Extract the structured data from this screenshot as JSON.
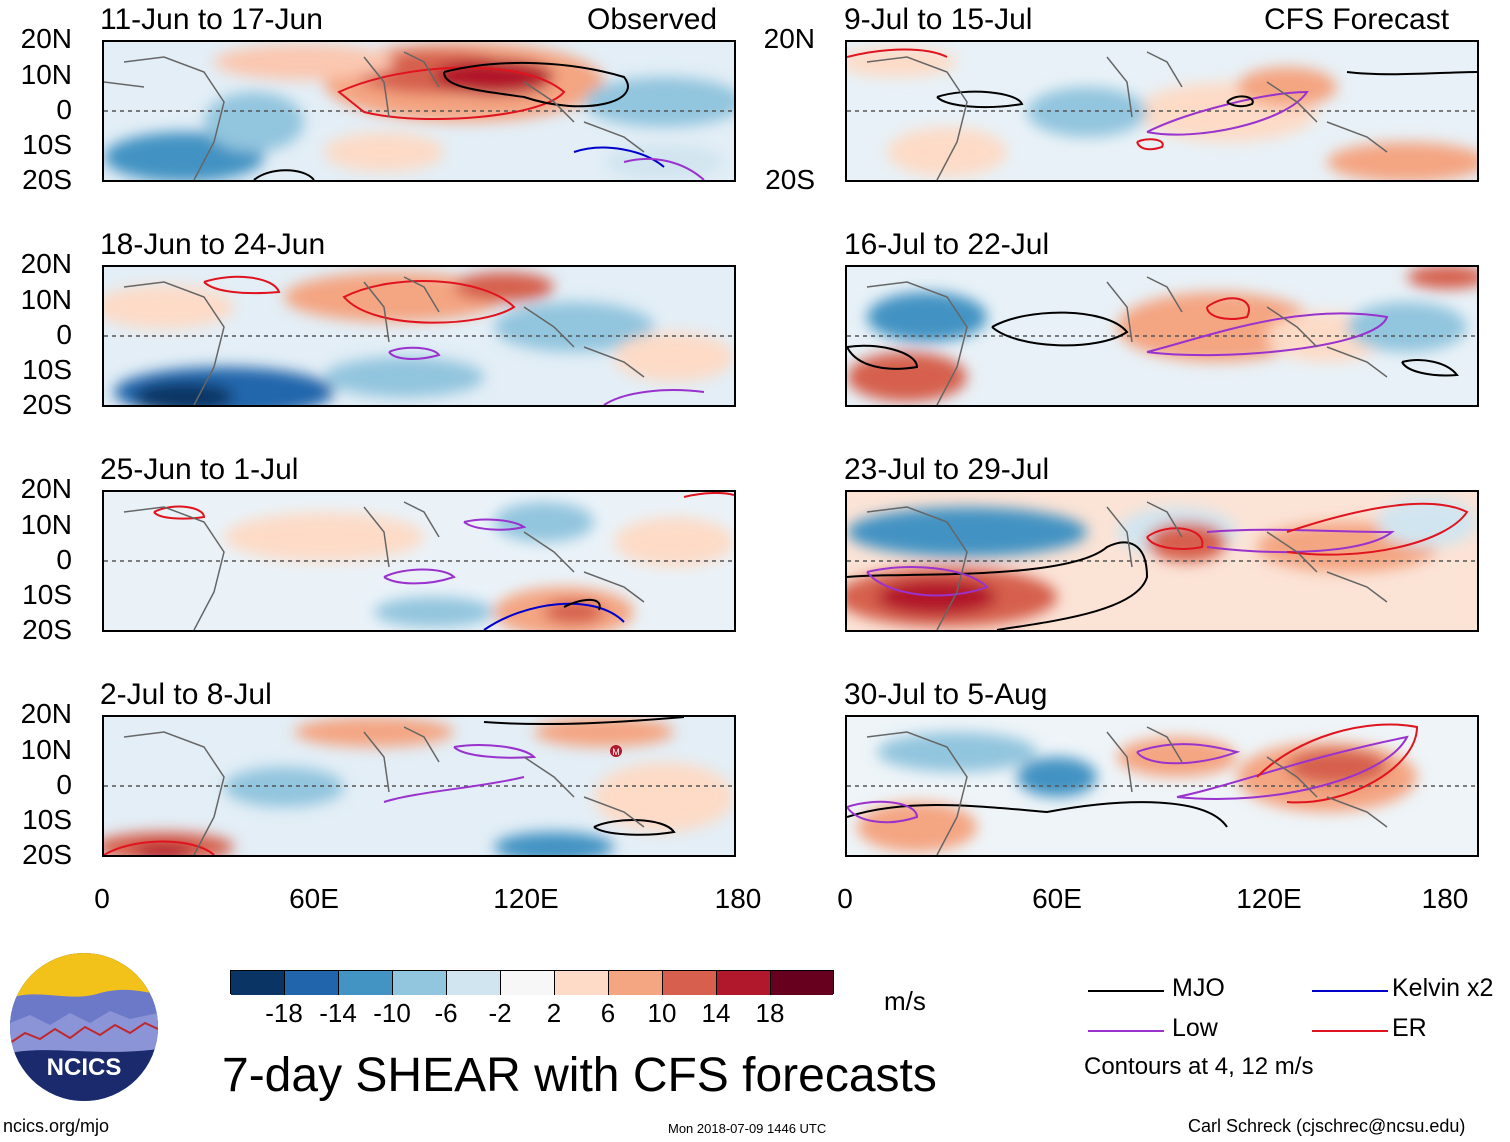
{
  "header": {
    "left_column_label": "Observed",
    "right_column_label": "CFS Forecast"
  },
  "panels_left": [
    {
      "title": "11-Jun to 17-Jun"
    },
    {
      "title": "18-Jun to 24-Jun"
    },
    {
      "title": "25-Jun to 1-Jul"
    },
    {
      "title": "2-Jul to 8-Jul"
    }
  ],
  "panels_right": [
    {
      "title": "9-Jul to 15-Jul"
    },
    {
      "title": "16-Jul to 22-Jul"
    },
    {
      "title": "23-Jul to 29-Jul"
    },
    {
      "title": "30-Jul to 5-Aug"
    }
  ],
  "axes": {
    "lat_labels": [
      "20N",
      "10N",
      "0",
      "10S",
      "20S"
    ],
    "lon_labels": [
      "0",
      "60E",
      "120E",
      "180"
    ]
  },
  "colorbar": {
    "units": "m/s",
    "ticks": [
      "-18",
      "-14",
      "-10",
      "-6",
      "-2",
      "2",
      "6",
      "10",
      "14",
      "18"
    ],
    "colors": [
      "#0a3463",
      "#2166ac",
      "#4393c3",
      "#92c5de",
      "#d1e5f0",
      "#f7f7f7",
      "#fddbc7",
      "#f4a582",
      "#d6604d",
      "#b2182b",
      "#67001f"
    ]
  },
  "legend": {
    "items": [
      {
        "label": "MJO",
        "color": "#000000"
      },
      {
        "label": "Kelvin x2",
        "color": "#0000cc"
      },
      {
        "label": "Low",
        "color": "#9a32cd"
      },
      {
        "label": "ER",
        "color": "#e0141e"
      }
    ],
    "note": "Contours at 4, 12 m/s"
  },
  "footer": {
    "main_title": "7-day SHEAR with CFS forecasts",
    "website": "ncics.org/mjo",
    "timestamp": "Mon 2018-07-09 1446 UTC",
    "credit": "Carl Schreck (cjschrec@ncsu.edu)",
    "logo_text": "NCICS",
    "marker_letter": "M"
  }
}
